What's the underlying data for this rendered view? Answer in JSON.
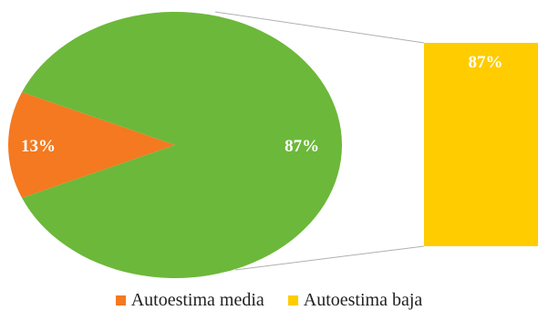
{
  "chart_data": {
    "type": "pie",
    "main_pie": {
      "slices": [
        {
          "value": 13,
          "label": "13%",
          "color": "#F47920"
        },
        {
          "value": 87,
          "label": "87%",
          "color": "#6CB83A"
        }
      ]
    },
    "secondary_bar": {
      "slices": [
        {
          "value": 87,
          "label": "87%",
          "color": "#FFCC00"
        }
      ]
    },
    "legend": [
      {
        "label": "Autoestima media",
        "color": "#F47920"
      },
      {
        "label": "Autoestima baja",
        "color": "#FFCC00"
      }
    ],
    "legend_position": "bottom"
  }
}
